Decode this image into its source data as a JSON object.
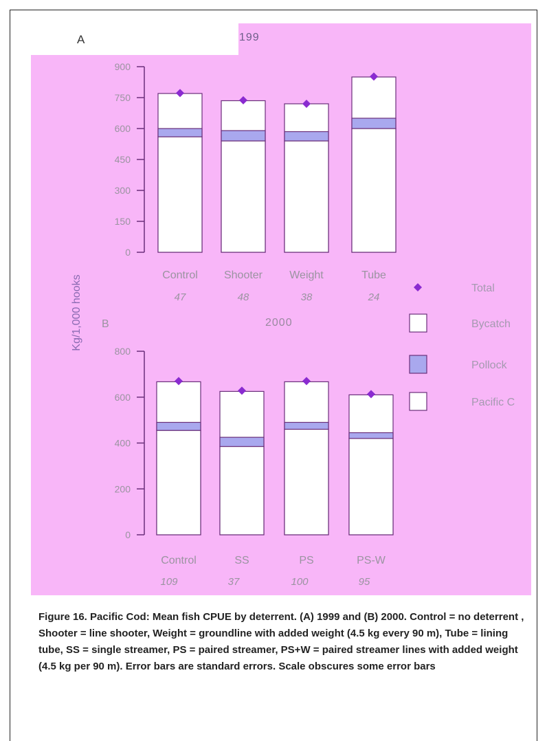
{
  "figure": {
    "ylabel": "Kg/1,000 hooks",
    "caption": "Figure 16. Pacific Cod: Mean fish CPUE by deterrent. (A) 1999 and (B) 2000. Control = no deterrent , Shooter = line shooter, Weight = groundline with added weight (4.5 kg every 90 m), Tube = lining tube, SS = single streamer, PS = paired streamer, PS+W = paired streamer lines with added weight (4.5 kg per 90 m). Error bars are standard errors. Scale obscures some error bars",
    "colors": {
      "background": "#f8b6f8",
      "bar_fill": "#ffffff",
      "pollock": "#a9a8ee",
      "total_marker": "#8a2bd0",
      "axis": "#6a2f7a"
    }
  },
  "legend": {
    "items": [
      {
        "label": "Total",
        "swatch": "diamond"
      },
      {
        "label": "Bycatch",
        "swatch": "white-box"
      },
      {
        "label": "Pollock",
        "swatch": "purple-box"
      },
      {
        "label": "Pacific C",
        "swatch": "white-box"
      }
    ]
  },
  "chart_data": [
    {
      "type": "bar",
      "panel": "A",
      "title": "199",
      "ylabel": "Kg/1,000 hooks",
      "ylim": [
        0,
        900
      ],
      "yticks": [
        0,
        150,
        300,
        450,
        600,
        750,
        900
      ],
      "ytick_labels": [
        "0",
        "150",
        "300",
        "450",
        "600",
        "750",
        "900"
      ],
      "categories": [
        "Control",
        "Shooter",
        "Weight",
        "Tube"
      ],
      "sample_sizes": [
        "47",
        "48",
        "38",
        "24"
      ],
      "stacked": true,
      "series": [
        {
          "name": "Pacific C",
          "values": [
            560,
            540,
            540,
            600
          ]
        },
        {
          "name": "Pollock",
          "values": [
            40,
            50,
            45,
            50
          ]
        },
        {
          "name": "Bycatch",
          "values": [
            170,
            145,
            135,
            200
          ]
        },
        {
          "name": "Total",
          "values": [
            772,
            737,
            720,
            852
          ]
        }
      ]
    },
    {
      "type": "bar",
      "panel": "B",
      "title": "2000",
      "ylabel": "Kg/1,000 hooks",
      "ylim": [
        0,
        800
      ],
      "yticks": [
        0,
        200,
        400,
        600,
        800
      ],
      "ytick_labels": [
        "0",
        "200",
        "400",
        "600",
        "800"
      ],
      "categories": [
        "Control",
        "SS",
        "PS",
        "PS-W"
      ],
      "sample_sizes": [
        "109",
        "37",
        "100",
        "95"
      ],
      "stacked": true,
      "series": [
        {
          "name": "Pacific C",
          "values": [
            455,
            385,
            460,
            420
          ]
        },
        {
          "name": "Pollock",
          "values": [
            35,
            40,
            30,
            25
          ]
        },
        {
          "name": "Bycatch",
          "values": [
            177,
            200,
            177,
            165
          ]
        },
        {
          "name": "Total",
          "values": [
            670,
            628,
            670,
            613
          ]
        }
      ]
    }
  ]
}
